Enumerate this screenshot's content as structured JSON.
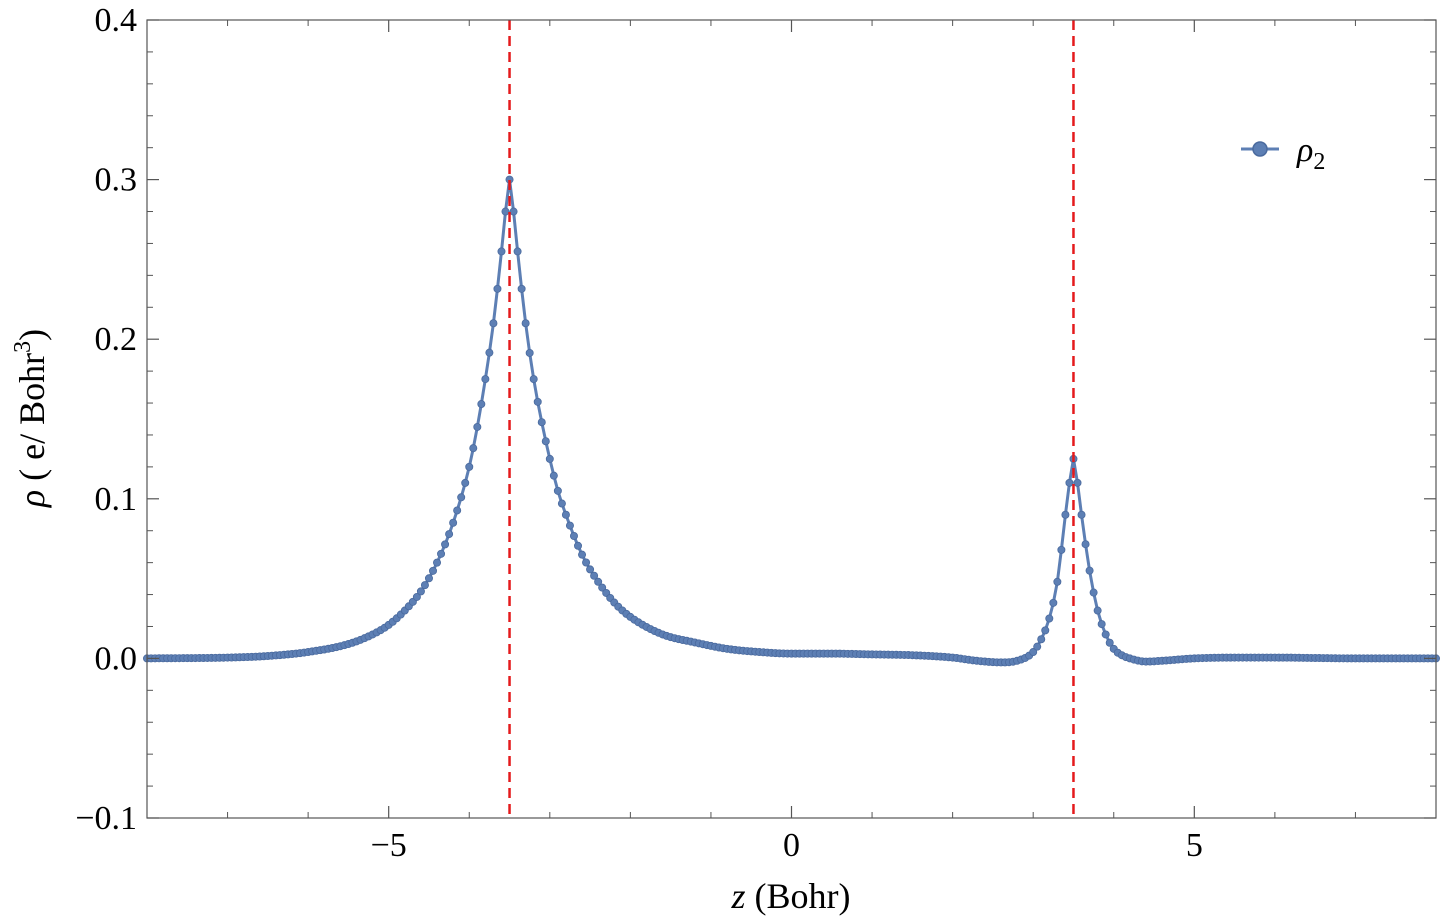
{
  "chart_data": {
    "type": "line",
    "title": "",
    "xlabel": "z (Bohr)",
    "xlabel_var": "z",
    "xlabel_unit": " (Bohr)",
    "ylabel": "ρ ( e/ Bohr³)",
    "ylabel_rho": "ρ",
    "ylabel_unit_main": " ( e/ Bohr",
    "ylabel_unit_sup": "3",
    "ylabel_unit_close": ")",
    "xlim": [
      -8,
      8
    ],
    "ylim": [
      -0.1,
      0.4
    ],
    "x_ticks": [
      -5,
      0,
      5
    ],
    "x_tick_labels": [
      "−5",
      "0",
      "5"
    ],
    "y_ticks": [
      -0.1,
      0.0,
      0.1,
      0.2,
      0.3,
      0.4
    ],
    "y_tick_labels": [
      "−0.1",
      "0.0",
      "0.1",
      "0.2",
      "0.3",
      "0.4"
    ],
    "x_minor_step": 1,
    "y_minor_step": 0.02,
    "grid": false,
    "legend": {
      "position": "top-right",
      "label_symbol": "ρ",
      "label_sub": "2"
    },
    "reference_lines": [
      {
        "orientation": "vertical",
        "x": -3.5,
        "style": "dashed",
        "color": "#e41a1c"
      },
      {
        "orientation": "vertical",
        "x": 3.5,
        "style": "dashed",
        "color": "#e41a1c"
      }
    ],
    "series": [
      {
        "name": "ρ2",
        "color": "#5d7fb4",
        "marker": "circle",
        "x": [
          -8.0,
          -7.0,
          -6.5,
          -6.0,
          -5.5,
          -5.2,
          -5.0,
          -4.8,
          -4.6,
          -4.4,
          -4.2,
          -4.0,
          -3.9,
          -3.8,
          -3.7,
          -3.6,
          -3.55,
          -3.5,
          -3.45,
          -3.4,
          -3.3,
          -3.2,
          -3.1,
          -3.0,
          -2.9,
          -2.8,
          -2.6,
          -2.4,
          -2.2,
          -2.0,
          -1.6,
          -1.2,
          -0.8,
          -0.4,
          0.0,
          0.5,
          1.0,
          1.5,
          2.0,
          2.3,
          2.6,
          2.8,
          3.0,
          3.1,
          3.2,
          3.3,
          3.35,
          3.4,
          3.45,
          3.5,
          3.55,
          3.6,
          3.7,
          3.8,
          3.9,
          4.0,
          4.1,
          4.2,
          4.4,
          4.6,
          5.0,
          5.5,
          6.0,
          7.0,
          8.0
        ],
        "values": [
          0.0,
          0.0005,
          0.0015,
          0.004,
          0.009,
          0.015,
          0.021,
          0.03,
          0.042,
          0.06,
          0.085,
          0.12,
          0.145,
          0.175,
          0.21,
          0.255,
          0.28,
          0.3,
          0.28,
          0.255,
          0.21,
          0.175,
          0.148,
          0.125,
          0.105,
          0.09,
          0.065,
          0.048,
          0.035,
          0.026,
          0.015,
          0.01,
          0.006,
          0.004,
          0.003,
          0.003,
          0.0025,
          0.002,
          0.0005,
          -0.0015,
          -0.0025,
          -0.0015,
          0.004,
          0.012,
          0.025,
          0.048,
          0.068,
          0.09,
          0.11,
          0.125,
          0.11,
          0.09,
          0.055,
          0.03,
          0.015,
          0.006,
          0.002,
          0.0,
          -0.002,
          -0.0015,
          0.0,
          0.0005,
          0.0005,
          0.0,
          0.0
        ]
      }
    ]
  }
}
